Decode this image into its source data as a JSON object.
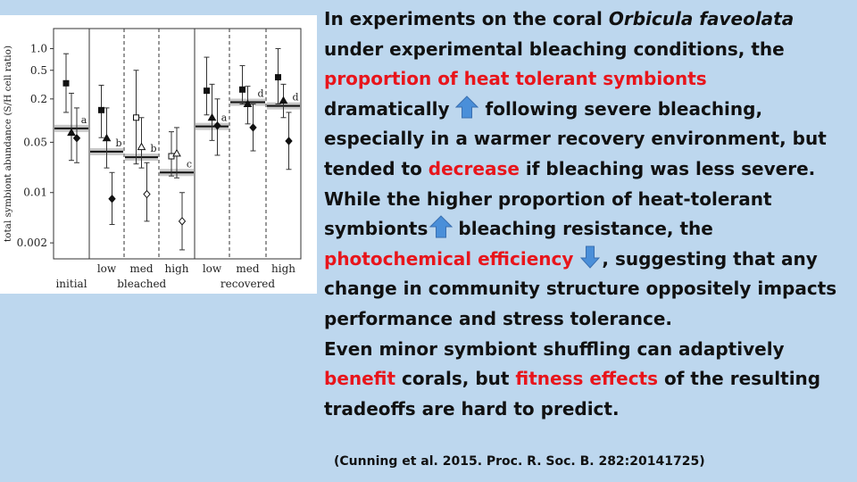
{
  "text": {
    "l1a": "In experiments on the coral ",
    "l1b": "Orbicula faveolata",
    "l2": "under experimental bleaching conditions, the",
    "l3": "proportion of heat tolerant symbionts",
    "l4a": "dramatically",
    "l4b": "following severe bleaching,",
    "l5": "especially in a warmer recovery environment, but",
    "l6a": "tended to ",
    "l6b": "decrease",
    "l6c": " if bleaching was less severe.",
    "l7": "While the higher proportion of heat-tolerant",
    "l8a": "symbionts",
    "l8b": "bleaching resistance, the",
    "l9a": "photochemical efficiency",
    "l9b": ", suggesting that any",
    "l10": "change in community structure oppositely impacts",
    "l11": "performance and stress tolerance.",
    "l12": "Even minor symbiont shuffling can adaptively",
    "l13a": "benefit",
    "l13b": " corals, but ",
    "l13c": "fitness effects",
    "l13d": " of the resulting",
    "l14": "tradeoffs are hard to predict.",
    "citation": "(Cunning et al.  2015. Proc. R. Soc. B. 282:20141725)"
  },
  "arrows": [
    {
      "name": "arrow-up-icon",
      "direction": "up",
      "color": "#4a8fd9"
    },
    {
      "name": "arrow-up-icon",
      "direction": "up",
      "color": "#4a8fd9"
    },
    {
      "name": "arrow-down-icon",
      "direction": "down",
      "color": "#4a8fd9"
    }
  ],
  "chart_data": {
    "type": "scatter",
    "ylabel": "total symbiont abundance (S/H cell ratio)",
    "y_ticks": [
      "1.0",
      "0.5",
      "0.2",
      "0.05",
      "0.01",
      "0.002"
    ],
    "y_tick_values": [
      1.0,
      0.5,
      0.2,
      0.05,
      0.01,
      0.002
    ],
    "y_scale": "log",
    "ylim": [
      0.0012,
      1.9
    ],
    "x_labels": [
      "low",
      "med",
      "high",
      "low",
      "med",
      "high"
    ],
    "group_labels": [
      "initial",
      "bleached",
      "recovered"
    ],
    "sub_labels": [
      "bleached",
      "recovered"
    ],
    "columns": [
      {
        "label": "initial",
        "letter": "a",
        "mean": 0.078,
        "points": [
          {
            "marker": "square",
            "v": 0.33,
            "lo": 0.13,
            "hi": 0.85
          },
          {
            "marker": "triangle",
            "v": 0.068,
            "lo": 0.028,
            "hi": 0.24
          },
          {
            "marker": "diamond",
            "v": 0.057,
            "lo": 0.026,
            "hi": 0.15
          }
        ]
      },
      {
        "label": "low",
        "letter": "b",
        "mean": 0.037,
        "points": [
          {
            "marker": "square",
            "v": 0.14,
            "lo": 0.058,
            "hi": 0.31
          },
          {
            "marker": "triangle",
            "v": 0.057,
            "lo": 0.022,
            "hi": 0.15
          },
          {
            "marker": "diamond",
            "v": 0.0082,
            "lo": 0.0036,
            "hi": 0.019
          }
        ]
      },
      {
        "label": "med",
        "letter": "b",
        "mean": 0.031,
        "points": [
          {
            "marker": "square",
            "v": 0.11,
            "lo": 0.025,
            "hi": 0.5
          },
          {
            "marker": "triangle",
            "v": 0.043,
            "lo": 0.022,
            "hi": 0.11
          },
          {
            "marker": "diamond",
            "v": 0.0095,
            "lo": 0.004,
            "hi": 0.026
          }
        ]
      },
      {
        "label": "high",
        "letter": "c",
        "mean": 0.019,
        "points": [
          {
            "marker": "square",
            "v": 0.032,
            "lo": 0.017,
            "hi": 0.07
          },
          {
            "marker": "triangle",
            "v": 0.035,
            "lo": 0.016,
            "hi": 0.08
          },
          {
            "marker": "diamond",
            "v": 0.004,
            "lo": 0.0016,
            "hi": 0.01
          }
        ]
      },
      {
        "label": "low",
        "letter": "a",
        "mean": 0.083,
        "points": [
          {
            "marker": "square",
            "v": 0.26,
            "lo": 0.12,
            "hi": 0.76
          },
          {
            "marker": "triangle",
            "v": 0.11,
            "lo": 0.053,
            "hi": 0.32
          },
          {
            "marker": "diamond",
            "v": 0.085,
            "lo": 0.033,
            "hi": 0.2
          }
        ]
      },
      {
        "label": "med",
        "letter": "d",
        "mean": 0.18,
        "points": [
          {
            "marker": "square",
            "v": 0.27,
            "lo": 0.17,
            "hi": 0.58
          },
          {
            "marker": "triangle",
            "v": 0.17,
            "lo": 0.09,
            "hi": 0.3
          },
          {
            "marker": "diamond",
            "v": 0.08,
            "lo": 0.038,
            "hi": 0.17
          }
        ]
      },
      {
        "label": "high",
        "letter": "d",
        "mean": 0.16,
        "points": [
          {
            "marker": "square",
            "v": 0.4,
            "lo": 0.17,
            "hi": 1.0
          },
          {
            "marker": "triangle",
            "v": 0.19,
            "lo": 0.11,
            "hi": 0.32
          },
          {
            "marker": "diamond",
            "v": 0.052,
            "lo": 0.021,
            "hi": 0.13
          }
        ]
      }
    ]
  }
}
